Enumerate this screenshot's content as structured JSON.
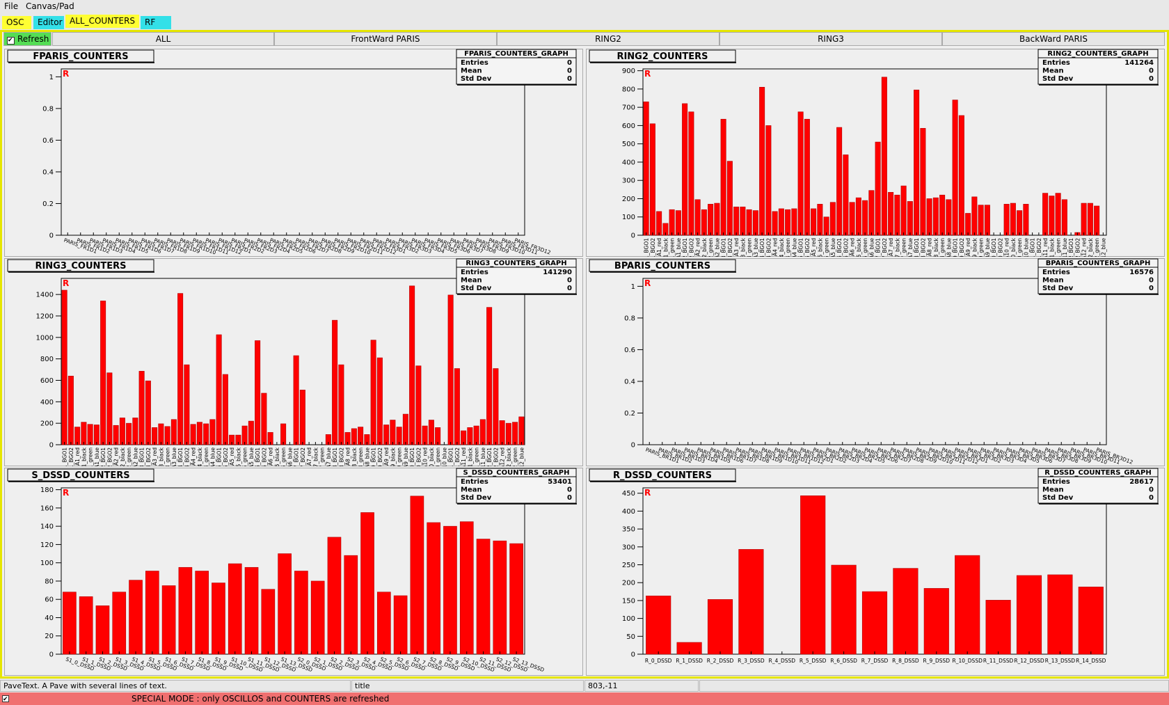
{
  "menu": [
    "File",
    "Canvas/Pad"
  ],
  "tabs": [
    "OSC",
    "Editor",
    "ALL_COUNTERS",
    "RF"
  ],
  "refresh": "Refresh",
  "buttons": [
    "ALL",
    "FrontWard PARIS",
    "RING2",
    "RING3",
    "BackWard PARIS"
  ],
  "stats_labels": [
    "Entries",
    "Mean",
    "Std Dev"
  ],
  "frame_marker": "R",
  "chart_data": [
    {
      "type": "bar",
      "title": "FPARIS_COUNTERS",
      "stats_title": "FPARIS_COUNTERS_GRAPH",
      "entries": 0,
      "mean": 0,
      "std_dev": 0,
      "color": "#ff0000",
      "categories": [
        "PARIS_FR1D1",
        "PARIS_FR1D2",
        "PARIS_FR1D3",
        "PARIS_FR1D4",
        "PARIS_FR1D5",
        "PARIS_FR1D6",
        "PARIS_FR1D7",
        "PARIS_FR1D8",
        "PARIS_FR1D9",
        "PARIS_FR1D10",
        "PARIS_FR1D11",
        "PARIS_FR1D12",
        "PARIS_FR2D1",
        "PARIS_FR2D2",
        "PARIS_FR2D3",
        "PARIS_FR2D4",
        "PARIS_FR2D5",
        "PARIS_FR2D6",
        "PARIS_FR2D7",
        "PARIS_FR2D8",
        "PARIS_FR2D9",
        "PARIS_FR2D10",
        "PARIS_FR2D11",
        "PARIS_FR2D12",
        "PARIS_FR3D1",
        "PARIS_FR3D2",
        "PARIS_FR3D3",
        "PARIS_FR3D4",
        "PARIS_FR3D5",
        "PARIS_FR3D6",
        "PARIS_FR3D7",
        "PARIS_FR3D8",
        "PARIS_FR3D9",
        "PARIS_FR3D10",
        "PARIS_FR3D11",
        "PARIS_FR3D12"
      ],
      "values": [
        0,
        0,
        0,
        0,
        0,
        0,
        0,
        0,
        0,
        0,
        0,
        0,
        0,
        0,
        0,
        0,
        0,
        0,
        0,
        0,
        0,
        0,
        0,
        0,
        0,
        0,
        0,
        0,
        0,
        0,
        0,
        0,
        0,
        0,
        0,
        0
      ],
      "ylim": [
        0,
        1.05
      ],
      "yticks": [
        0,
        0.2,
        0.4,
        0.6,
        0.8,
        1
      ]
    },
    {
      "type": "bar",
      "title": "RING2_COUNTERS",
      "stats_title": "RING2_COUNTERS_GRAPH",
      "entries": 141264,
      "mean": 0,
      "std_dev": 0,
      "color": "#ff0000",
      "categories": [
        "A1_BGO1",
        "A1_BGO2",
        "A1_red",
        "A1_black",
        "A1_green",
        "A1_blue",
        "A2_BGO1",
        "A2_BGO2",
        "A2_red",
        "A2_black",
        "A2_green",
        "A2_blue",
        "A3_BGO1",
        "A3_BGO2",
        "A3_red",
        "A3_black",
        "A3_green",
        "A3_blue",
        "A4_BGO1",
        "A4_BGO2",
        "A4_red",
        "A4_black",
        "A4_green",
        "A4_blue",
        "A5_BGO1",
        "A5_BGO2",
        "A5_red",
        "A5_black",
        "A5_green",
        "A5_blue",
        "A6_BGO1",
        "A6_BGO2",
        "A6_red",
        "A6_black",
        "A6_green",
        "A6_blue",
        "A7_BGO1",
        "A7_BGO2",
        "A7_red",
        "A7_black",
        "A7_green",
        "A7_blue",
        "A8_BGO1",
        "A8_BGO2",
        "A8_red",
        "A8_black",
        "A8_green",
        "A8_blue",
        "A9_BGO1",
        "A9_BGO2",
        "A9_red",
        "A9_black",
        "A9_green",
        "A9_blue",
        "A10_BGO1",
        "A10_BGO2",
        "A10_red",
        "A10_black",
        "A10_green",
        "A10_blue",
        "A11_BGO1",
        "A11_BGO2",
        "A11_red",
        "A11_black",
        "A11_green",
        "A11_blue",
        "A12_BGO1",
        "A12_BGO2",
        "A12_red",
        "A12_black",
        "A12_green",
        "A12_blue"
      ],
      "values": [
        730,
        610,
        130,
        65,
        140,
        135,
        720,
        675,
        195,
        140,
        170,
        175,
        635,
        405,
        155,
        155,
        140,
        135,
        810,
        600,
        130,
        145,
        140,
        145,
        675,
        635,
        145,
        170,
        100,
        180,
        590,
        440,
        180,
        205,
        190,
        245,
        510,
        865,
        235,
        220,
        270,
        185,
        795,
        585,
        200,
        205,
        220,
        195,
        740,
        655,
        120,
        210,
        165,
        165,
        0,
        0,
        170,
        175,
        135,
        170,
        0,
        0,
        230,
        215,
        230,
        195,
        0,
        15,
        175,
        175,
        160,
        0
      ],
      "ylim": [
        0,
        910
      ],
      "yticks": [
        0,
        100,
        200,
        300,
        400,
        500,
        600,
        700,
        800,
        900
      ]
    },
    {
      "type": "bar",
      "title": "RING3_COUNTERS",
      "stats_title": "RING3_COUNTERS_GRAPH",
      "entries": 141290,
      "mean": 0,
      "std_dev": 0,
      "color": "#ff0000",
      "categories": [
        "A1_BGO1",
        "A1_BGO2",
        "A1_red",
        "A1_black",
        "A1_green",
        "A1_blue",
        "A2_BGO1",
        "A2_BGO2",
        "A2_red",
        "A2_black",
        "A2_green",
        "A2_blue",
        "A3_BGO1",
        "A3_BGO2",
        "A3_red",
        "A3_black",
        "A3_green",
        "A3_blue",
        "A4_BGO1",
        "A4_BGO2",
        "A4_red",
        "A4_black",
        "A4_green",
        "A4_blue",
        "A5_BGO1",
        "A5_BGO2",
        "A5_red",
        "A5_black",
        "A5_green",
        "A5_blue",
        "A6_BGO1",
        "A6_BGO2",
        "A6_red",
        "A6_black",
        "A6_green",
        "A6_blue",
        "A7_BGO1",
        "A7_BGO2",
        "A7_red",
        "A7_black",
        "A7_green",
        "A7_blue",
        "A8_BGO1",
        "A8_BGO2",
        "A8_red",
        "A8_black",
        "A8_green",
        "A8_blue",
        "A9_BGO1",
        "A9_BGO2",
        "A9_red",
        "A9_black",
        "A9_green",
        "A9_blue",
        "A10_BGO1",
        "A10_BGO2",
        "A10_red",
        "A10_black",
        "A10_green",
        "A10_blue",
        "A11_BGO1",
        "A11_BGO2",
        "A11_red",
        "A11_black",
        "A11_green",
        "A11_blue",
        "A12_BGO1",
        "A12_BGO2",
        "A12_red",
        "A12_black",
        "A12_green",
        "A12_blue"
      ],
      "values": [
        1440,
        640,
        165,
        210,
        190,
        185,
        1340,
        670,
        180,
        250,
        200,
        250,
        685,
        595,
        160,
        195,
        170,
        235,
        1410,
        745,
        190,
        210,
        195,
        235,
        1025,
        655,
        90,
        90,
        175,
        220,
        970,
        480,
        115,
        0,
        195,
        0,
        830,
        510,
        0,
        0,
        0,
        95,
        1160,
        745,
        115,
        150,
        165,
        95,
        975,
        810,
        185,
        230,
        165,
        285,
        1480,
        735,
        175,
        230,
        160,
        0,
        1395,
        710,
        130,
        160,
        175,
        235,
        1280,
        710,
        225,
        200,
        210,
        260
      ],
      "ylim": [
        0,
        1550
      ],
      "yticks": [
        0,
        200,
        400,
        600,
        800,
        1000,
        1200,
        1400
      ]
    },
    {
      "type": "bar",
      "title": "BPARIS_COUNTERS",
      "stats_title": "BPARIS_COUNTERS_GRAPH",
      "entries": 16576,
      "mean": 0,
      "std_dev": 0,
      "color": "#ff0000",
      "categories": [
        "PARIS_BR1D1",
        "PARIS_BR1D2",
        "PARIS_BR1D3",
        "PARIS_BR1D4",
        "PARIS_BR1D5",
        "PARIS_BR1D6",
        "PARIS_BR1D7",
        "PARIS_BR1D8",
        "PARIS_BR1D9",
        "PARIS_BR1D10",
        "PARIS_BR1D11",
        "PARIS_BR1D12",
        "PARIS_BR2D1",
        "PARIS_BR2D2",
        "PARIS_BR2D3",
        "PARIS_BR2D4",
        "PARIS_BR2D5",
        "PARIS_BR2D6",
        "PARIS_BR2D7",
        "PARIS_BR2D8",
        "PARIS_BR2D9",
        "PARIS_BR2D10",
        "PARIS_BR2D11",
        "PARIS_BR2D12",
        "PARIS_BR3D1",
        "PARIS_BR3D2",
        "PARIS_BR3D3",
        "PARIS_BR3D4",
        "PARIS_BR3D5",
        "PARIS_BR3D6",
        "PARIS_BR3D7",
        "PARIS_BR3D8",
        "PARIS_BR3D9",
        "PARIS_BR3D10",
        "PARIS_BR3D11",
        "PARIS_BR3D12"
      ],
      "values": [
        0,
        0,
        0,
        0,
        0,
        0,
        0,
        0,
        0,
        0,
        0,
        0,
        0,
        0,
        0,
        0,
        0,
        0,
        0,
        0,
        0,
        0,
        0,
        0,
        0,
        0,
        0,
        0,
        0,
        0,
        0,
        0,
        0,
        0,
        0,
        0
      ],
      "ylim": [
        0,
        1.05
      ],
      "yticks": [
        0,
        0.2,
        0.4,
        0.6,
        0.8,
        1
      ]
    },
    {
      "type": "bar",
      "title": "S_DSSD_COUNTERS",
      "stats_title": "S_DSSD_COUNTERS_GRAPH",
      "entries": 53401,
      "mean": 0,
      "std_dev": 0,
      "color": "#ff0000",
      "categories": [
        "S1_0_DSSD",
        "S1_1_DSSD",
        "S1_2_DSSD",
        "S1_3_DSSD",
        "S1_4_DSSD",
        "S1_5_DSSD",
        "S1_6_DSSD",
        "S1_7_DSSD",
        "S1_8_DSSD",
        "S1_9_DSSD",
        "S1_10_DSSD",
        "S1_11_DSSD",
        "S1_12_DSSD",
        "S1_13_DSSD",
        "S2_0_DSSD",
        "S2_1_DSSD",
        "S2_2_DSSD",
        "S2_3_DSSD",
        "S2_4_DSSD",
        "S2_5_DSSD",
        "S2_6_DSSD",
        "S2_7_DSSD",
        "S2_8_DSSD",
        "S2_9_DSSD",
        "S2_10_DSSD",
        "S2_11_DSSD",
        "S2_12_DSSD",
        "S2_13_DSSD"
      ],
      "values": [
        68,
        63,
        53,
        68,
        81,
        91,
        75,
        95,
        91,
        78,
        99,
        95,
        71,
        110,
        91,
        80,
        128,
        108,
        155,
        68,
        64,
        173,
        144,
        140,
        145,
        126,
        124,
        121
      ],
      "ylim": [
        0,
        182
      ],
      "yticks": [
        0,
        20,
        40,
        60,
        80,
        100,
        120,
        140,
        160,
        180
      ]
    },
    {
      "type": "bar",
      "title": "R_DSSD_COUNTERS",
      "stats_title": "R_DSSD_COUNTERS_GRAPH",
      "entries": 28617,
      "mean": 0,
      "std_dev": 0,
      "color": "#ff0000",
      "categories": [
        "R_0_DSSD",
        "R_1_DSSD",
        "R_2_DSSD",
        "R_3_DSSD",
        "R_4_DSSD",
        "R_5_DSSD",
        "R_6_DSSD",
        "R_7_DSSD",
        "R_8_DSSD",
        "R_9_DSSD",
        "R_10_DSSD",
        "R_11_DSSD",
        "R_12_DSSD",
        "R_13_DSSD",
        "R_14_DSSD"
      ],
      "values": [
        163,
        33,
        153,
        293,
        0,
        443,
        249,
        175,
        240,
        184,
        276,
        151,
        220,
        222,
        188
      ],
      "ylim": [
        0,
        465
      ],
      "yticks": [
        0,
        50,
        100,
        150,
        200,
        250,
        300,
        350,
        400,
        450
      ]
    }
  ],
  "status": [
    "PaveText. A Pave with several lines of text.",
    "title",
    "803,-11"
  ],
  "special_mode": "SPECIAL MODE : only OSCILLOS and COUNTERS are refreshed"
}
